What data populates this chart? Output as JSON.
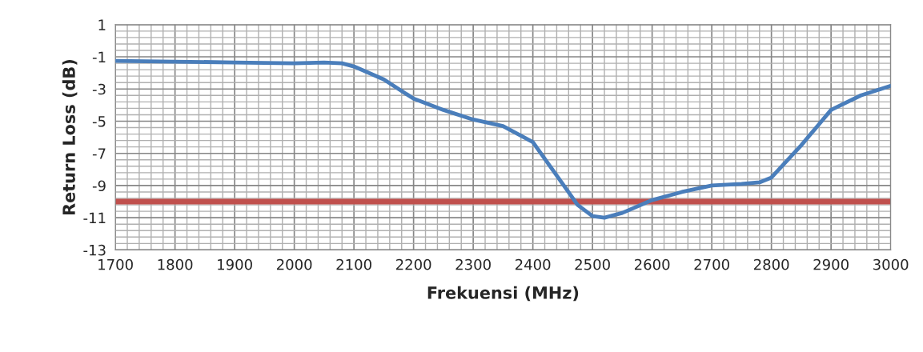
{
  "chart_data": {
    "type": "line",
    "xlabel": "Frekuensi (MHz)",
    "ylabel": "Return Loss (dB)",
    "x": [
      1700,
      1800,
      1900,
      2000,
      2050,
      2080,
      2100,
      2150,
      2200,
      2250,
      2300,
      2350,
      2400,
      2450,
      2475,
      2500,
      2520,
      2550,
      2600,
      2650,
      2700,
      2750,
      2780,
      2800,
      2850,
      2900,
      2950,
      3000
    ],
    "series": [
      {
        "color": "#4a7ebb",
        "values": [
          -1.25,
          -1.3,
          -1.35,
          -1.4,
          -1.35,
          -1.4,
          -1.6,
          -2.4,
          -3.6,
          -4.3,
          -4.9,
          -5.3,
          -6.3,
          -8.9,
          -10.2,
          -10.9,
          -11.0,
          -10.7,
          -9.9,
          -9.4,
          -9.0,
          -8.9,
          -8.8,
          -8.5,
          -6.5,
          -4.3,
          -3.4,
          -2.8
        ]
      }
    ],
    "xlim": [
      1700,
      3000
    ],
    "xticks": [
      1700,
      1800,
      1900,
      2000,
      2100,
      2200,
      2300,
      2400,
      2500,
      2600,
      2700,
      2800,
      2900,
      3000
    ],
    "ylim": [
      -13,
      1
    ],
    "yticks": [
      -13,
      -11,
      -9,
      -7,
      -5,
      -3,
      -1,
      1
    ],
    "ref_lines": [
      {
        "axis": "y",
        "value": -10,
        "color": "#c0504d"
      }
    ],
    "grid": true,
    "legend": false,
    "marker": "none",
    "line_style": "solid"
  }
}
